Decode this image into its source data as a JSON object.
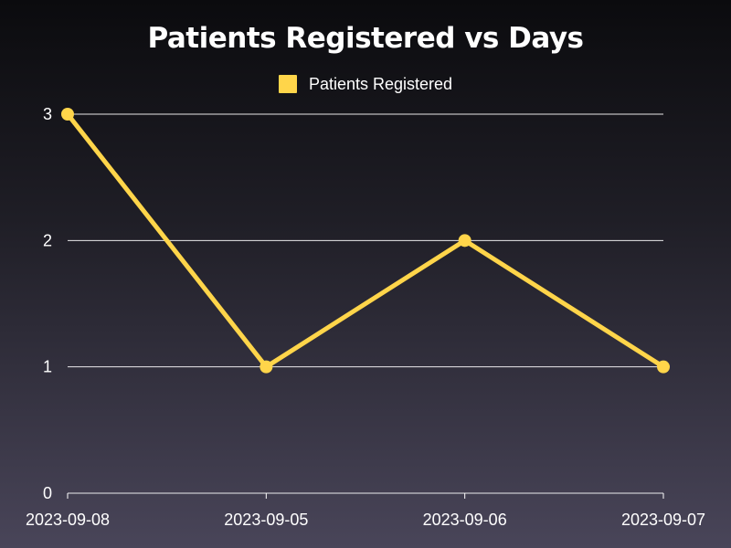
{
  "chart_data": {
    "type": "line",
    "title": "Patients Registered vs Days",
    "xlabel": "",
    "ylabel": "",
    "categories": [
      "2023-09-08",
      "2023-09-05",
      "2023-09-06",
      "2023-09-07"
    ],
    "series": [
      {
        "name": "Patients Registered",
        "values": [
          3,
          1,
          2,
          1
        ],
        "color": "#ffd54a"
      }
    ],
    "ylim": [
      0,
      3
    ],
    "yticks": [
      0,
      1,
      2,
      3
    ],
    "grid": true,
    "legend_position": "top-center"
  }
}
